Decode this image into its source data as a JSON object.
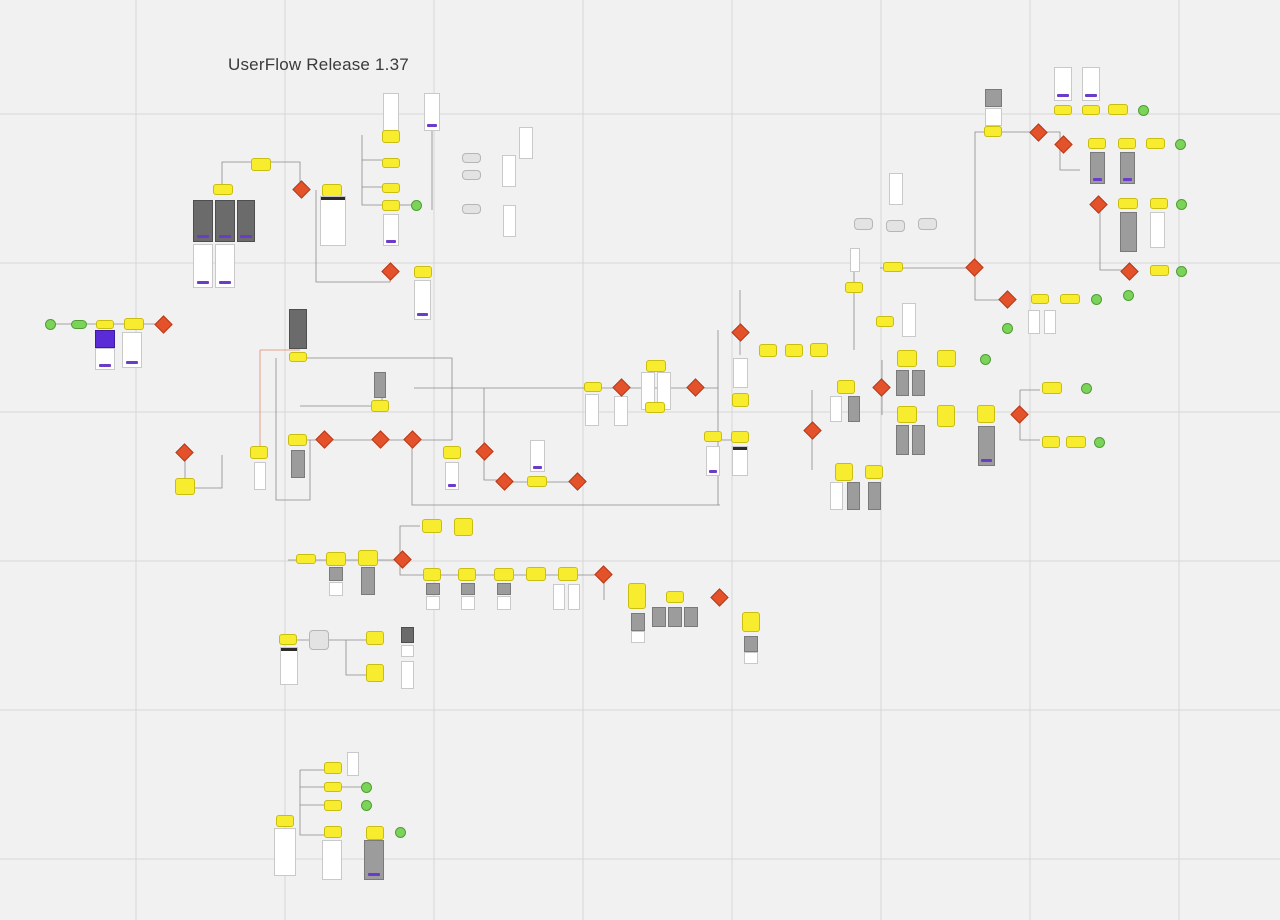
{
  "board": {
    "title": "UserFlow Release 1.37",
    "colors": {
      "background": "#f1f1f1",
      "grid": "#d6d6d6",
      "note": "#f7ec2e",
      "decision": "#e4522b",
      "terminal": "#7cd35a",
      "connector": "#8a8a8a",
      "connector_accent": "#e08a6a"
    }
  }
}
